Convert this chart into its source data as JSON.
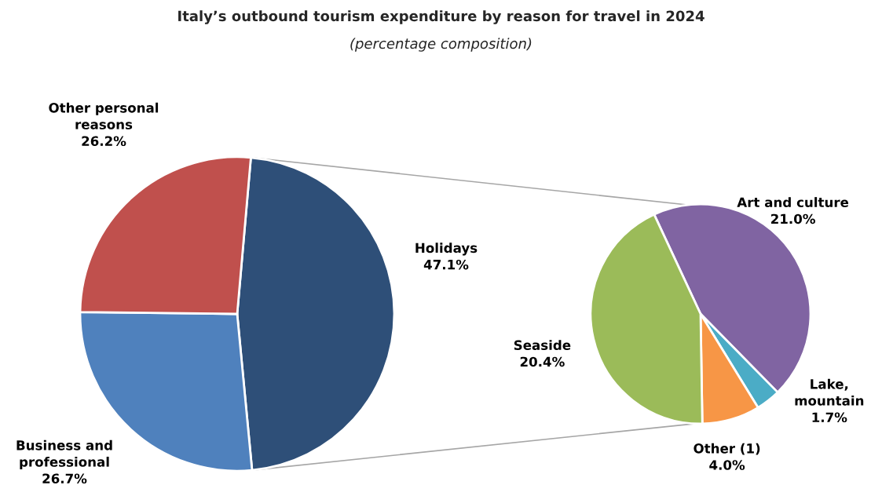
{
  "chart_data": [
    {
      "type": "pie",
      "title": "Italy’s outbound tourism expenditure by reason for travel in 2024",
      "subtitle": "(percentage composition)",
      "categories": [
        "Holidays",
        "Business and\nprofessional",
        "Other personal\nreasons"
      ],
      "values": [
        47.1,
        26.7,
        26.2
      ],
      "colors": [
        "#2e4f78",
        "#4f81bd",
        "#c0504d"
      ],
      "value_labels": [
        "47.1%",
        "26.7%",
        "26.2%"
      ]
    },
    {
      "type": "pie",
      "categories": [
        "Art and culture",
        "Lake,\nmountain",
        "Other (1)",
        "Seaside"
      ],
      "values": [
        21.0,
        1.7,
        4.0,
        20.4
      ],
      "colors": [
        "#8064a2",
        "#4bacc6",
        "#f79646",
        "#9bbb59"
      ],
      "value_labels": [
        "21.0%",
        "1.7%",
        "4.0%",
        "20.4%"
      ]
    }
  ]
}
